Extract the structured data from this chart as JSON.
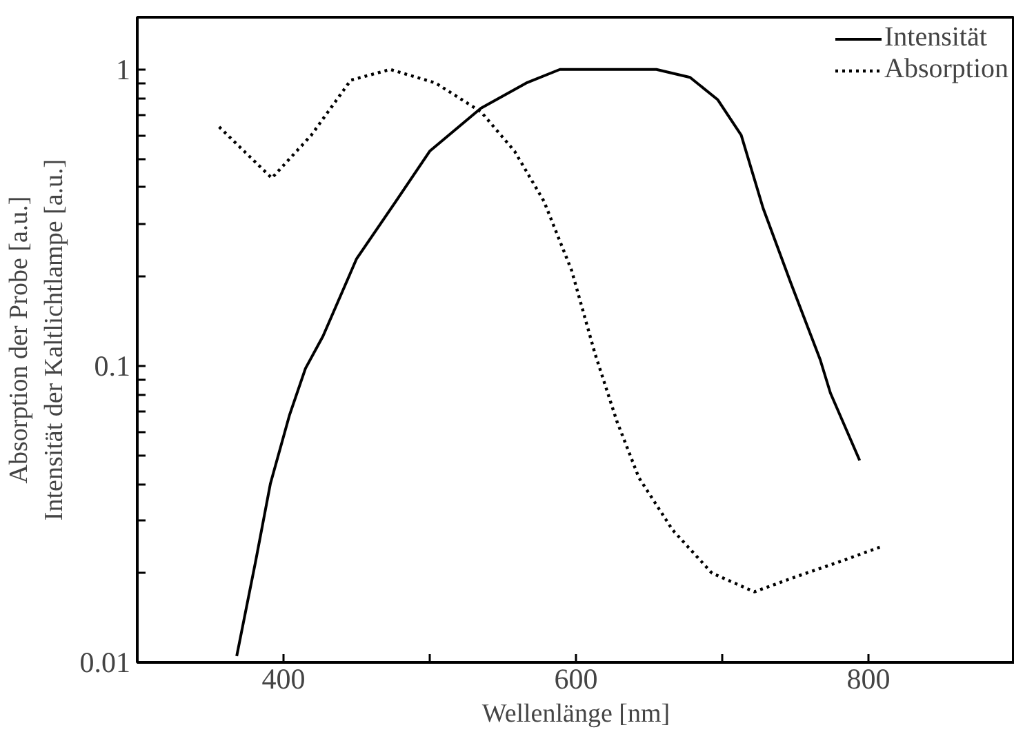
{
  "chart_data": {
    "type": "line",
    "xlabel": "Wellenlänge [nm]",
    "ylabel": "Absorption der Probe [a.u.]\nIntensität der Kaltlichtlampe [a.u.]",
    "log": "y",
    "xlim": [
      300,
      900
    ],
    "ylim": [
      0.01,
      1.5
    ],
    "xticks": [
      400,
      {
        "value": 500,
        "label": null
      },
      600,
      {
        "value": 700,
        "label": null
      },
      800
    ],
    "yticks": [
      {
        "value": 0.01,
        "label": "0.01"
      },
      {
        "value": 0.02,
        "label": null
      },
      {
        "value": 0.03,
        "label": null
      },
      {
        "value": 0.04,
        "label": null
      },
      {
        "value": 0.05,
        "label": null
      },
      {
        "value": 0.06,
        "label": null
      },
      {
        "value": 0.07,
        "label": null
      },
      {
        "value": 0.08,
        "label": null
      },
      {
        "value": 0.09,
        "label": null
      },
      {
        "value": 0.1,
        "label": "0.1"
      },
      {
        "value": 0.2,
        "label": null
      },
      {
        "value": 0.3,
        "label": null
      },
      {
        "value": 0.4,
        "label": null
      },
      {
        "value": 0.5,
        "label": null
      },
      {
        "value": 0.6,
        "label": null
      },
      {
        "value": 0.7,
        "label": null
      },
      {
        "value": 0.8,
        "label": null
      },
      {
        "value": 0.9,
        "label": null
      },
      {
        "value": 1,
        "label": "1"
      }
    ],
    "grid": false,
    "legend": "top right",
    "series": [
      {
        "name": "Intensität",
        "color": "#000000",
        "line_style": "solid",
        "x": [
          368,
          381,
          391,
          404,
          415,
          427,
          450,
          477,
          500,
          535,
          566,
          589,
          616,
          655,
          678,
          697,
          713,
          728,
          747,
          767,
          774,
          794
        ],
        "values": [
          0.0105,
          0.022,
          0.04,
          0.068,
          0.098,
          0.126,
          0.23,
          0.36,
          0.53,
          0.74,
          0.9,
          1.0,
          1.0,
          1.0,
          0.94,
          0.79,
          0.6,
          0.34,
          0.19,
          0.105,
          0.081,
          0.048
        ]
      },
      {
        "name": "Absorption",
        "color": "#000000",
        "line_style": "dotted",
        "x": [
          356,
          392,
          419,
          446,
          473,
          504,
          535,
          558,
          578,
          597,
          613,
          628,
          643,
          666,
          693,
          722,
          751,
          782,
          809
        ],
        "values": [
          0.64,
          0.43,
          0.6,
          0.92,
          1.0,
          0.9,
          0.72,
          0.53,
          0.36,
          0.21,
          0.11,
          0.065,
          0.042,
          0.028,
          0.02,
          0.0173,
          0.0195,
          0.022,
          0.0246
        ]
      }
    ]
  }
}
